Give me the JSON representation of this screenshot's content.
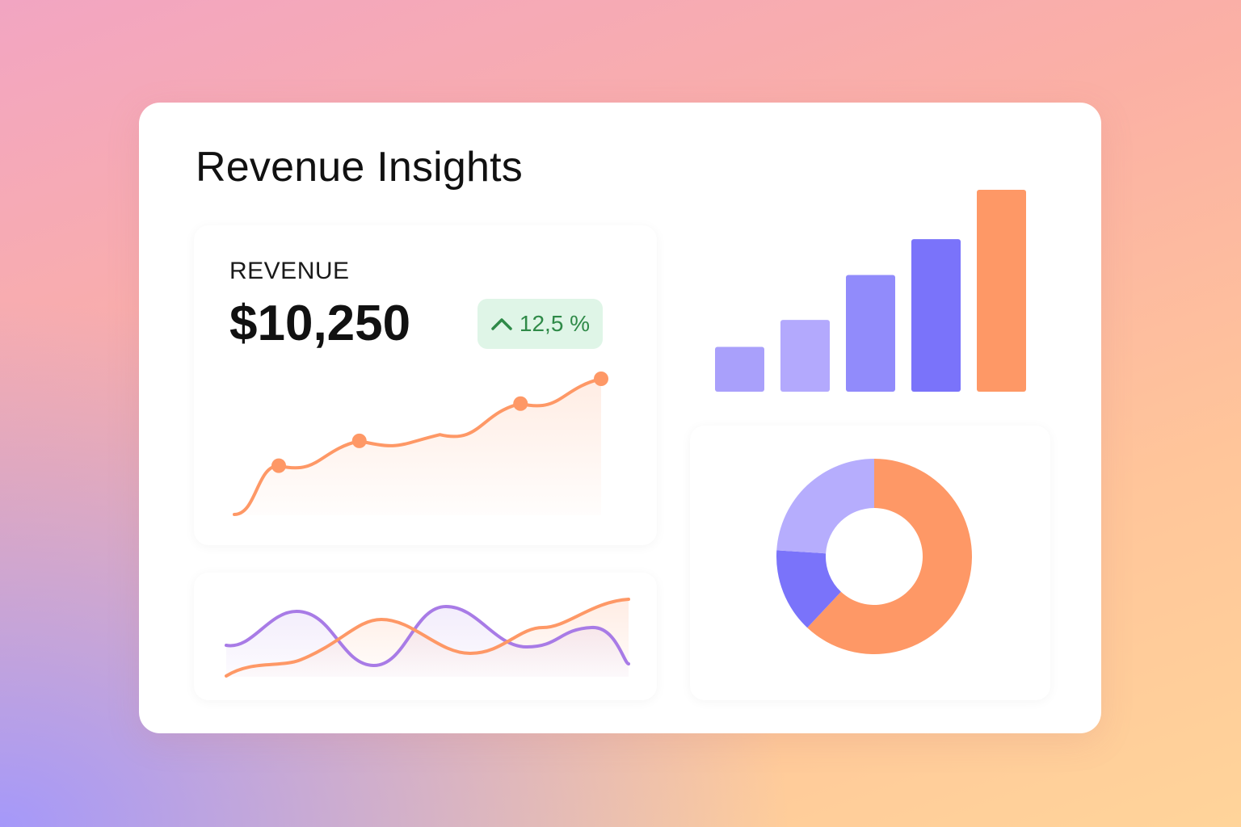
{
  "dashboard": {
    "title": "Revenue Insights"
  },
  "revenue_card": {
    "label": "REVENUE",
    "value": "$10,250",
    "change": "12,5 %",
    "change_direction": "up",
    "icon": "chevron-up-icon"
  },
  "colors": {
    "orange": "#fe9866",
    "purple": "#7a73fa",
    "lavender": "#b6adfd",
    "green_text": "#2f8a48",
    "green_bg": "#dff5e7"
  },
  "chart_data": [
    {
      "type": "line",
      "series": [
        {
          "values": [
            1,
            3,
            3.5,
            6,
            8
          ]
        }
      ],
      "grid": false
    },
    {
      "type": "bar",
      "values": [
        1,
        1.6,
        2.6,
        3.4,
        4.5
      ],
      "colors": [
        "#a9a0fb",
        "#b3a9fd",
        "#918bfb",
        "#7a73fa",
        "#fe9866"
      ],
      "grid": false
    },
    {
      "type": "pie",
      "values": [
        62,
        14,
        24
      ],
      "colors": [
        "#fe9866",
        "#7a73fa",
        "#b6adfd"
      ],
      "donut": true
    },
    {
      "type": "line",
      "series": [
        {
          "color": "#a87be6"
        },
        {
          "color": "#fe9866"
        }
      ],
      "grid": false
    }
  ]
}
